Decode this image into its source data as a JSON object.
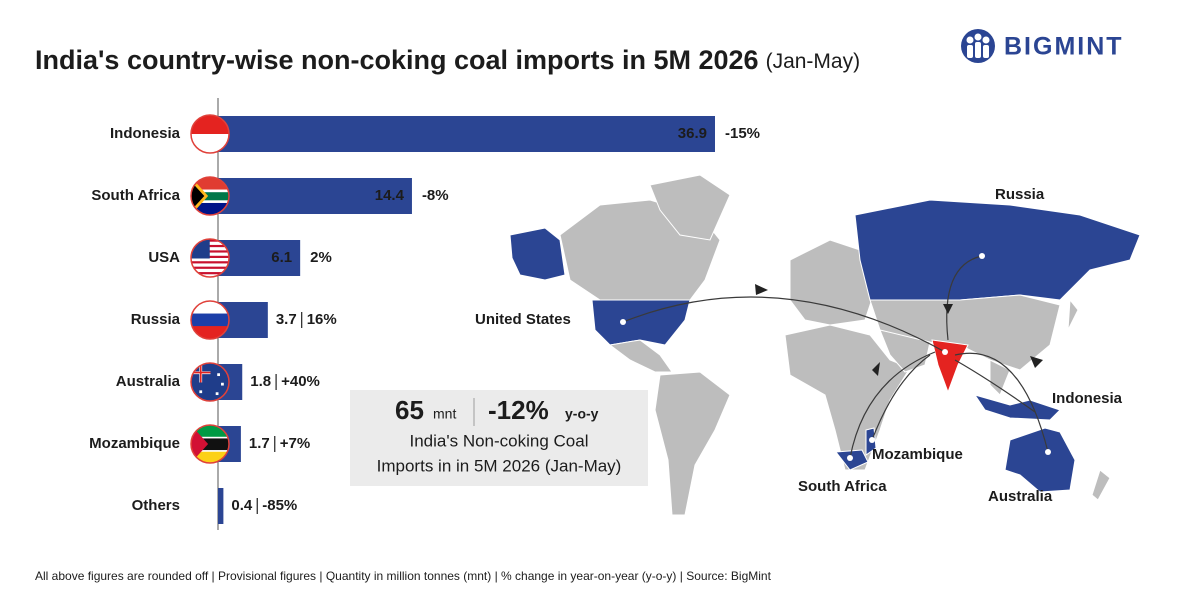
{
  "logo": "BIGMINT",
  "chart_data": {
    "type": "bar",
    "orientation": "horizontal",
    "title": "India's country-wise non-coking coal imports in 5M 2026",
    "subtitle": "(Jan-May)",
    "categories": [
      "Indonesia",
      "South Africa",
      "USA",
      "Russia",
      "Australia",
      "Mozambique",
      "Others"
    ],
    "values": [
      36.9,
      14.4,
      6.1,
      3.7,
      1.8,
      1.7,
      0.4
    ],
    "color": "#2b4593",
    "changes": {
      "values": [
        -15,
        -8,
        2,
        16,
        40,
        7,
        -85
      ],
      "value_labels": [
        "-15%",
        "-8%",
        "2%",
        "16%",
        "+40%",
        "+7%",
        "-85%"
      ],
      "positive_color": "#1fa04a",
      "negative_color": "#e42320"
    },
    "summary": {
      "total": 65,
      "total_unit": "mnt",
      "change": -12,
      "change_label": "-12%",
      "change_unit": "y-o-y",
      "caption": [
        "India's Non-coking Coal",
        "Imports in in 5M 2026 (Jan-May)"
      ]
    },
    "map_labels": [
      "Russia",
      "United States",
      "Indonesia",
      "Mozambique",
      "South Africa",
      "Australia"
    ],
    "footnote": "All above figures are rounded off | Provisional figures | Quantity in million tonnes (mnt) | % change in year-on-year (y-o-y)  |  Source: BigMint"
  }
}
